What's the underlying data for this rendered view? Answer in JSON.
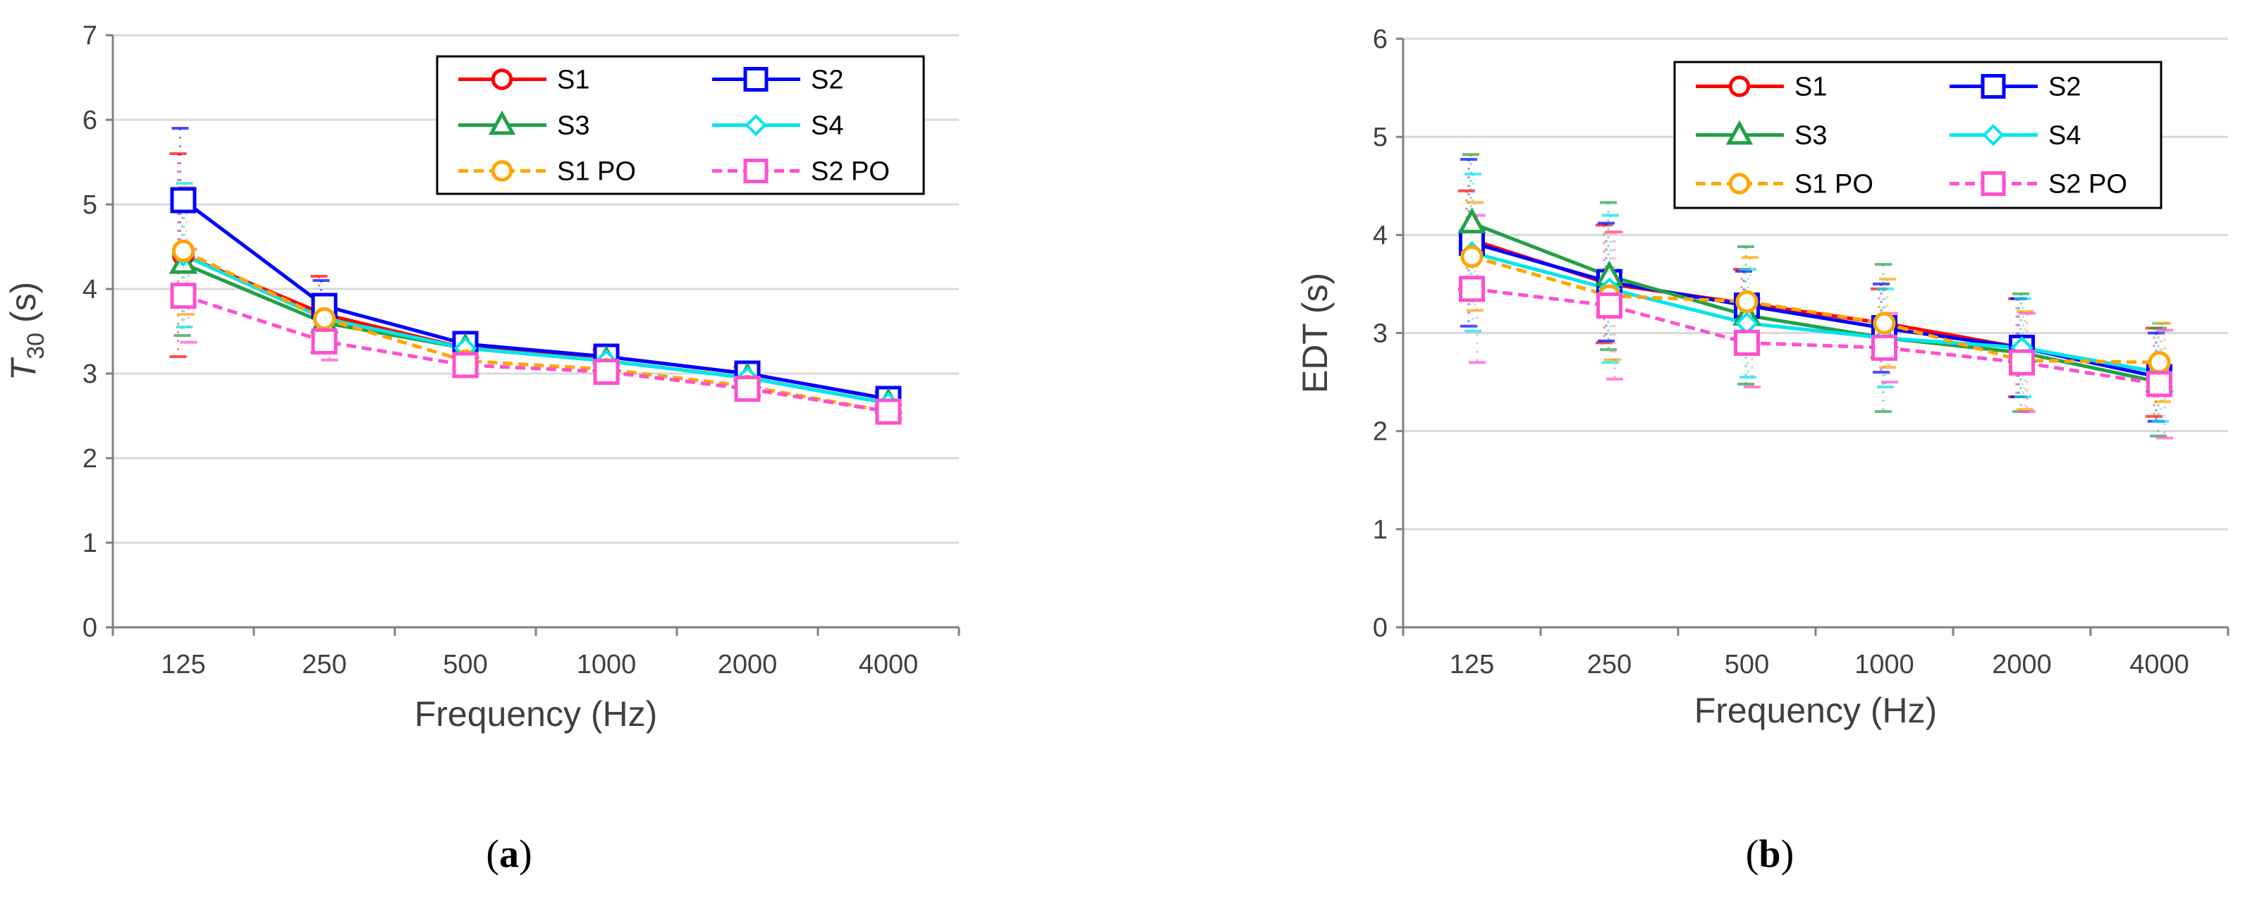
{
  "chart_data": [
    {
      "id": "a",
      "type": "line",
      "caption": "a",
      "xlabel": "Frequency (Hz)",
      "ylabel_main": "T",
      "ylabel_sub": "30",
      "ylabel_unit": " (s)",
      "ylim": [
        0,
        7
      ],
      "yticks": [
        "0",
        "1",
        "2",
        "3",
        "4",
        "5",
        "6",
        "7"
      ],
      "categories": [
        "125",
        "250",
        "500",
        "1000",
        "2000",
        "4000"
      ],
      "grid": true,
      "legend": "top-right",
      "series": [
        {
          "name": "S1",
          "values": [
            4.4,
            3.7,
            3.3,
            3.2,
            3.0,
            2.7
          ],
          "err": [
            1.2,
            0.45,
            0.1,
            0.08,
            0.08,
            0.08
          ]
        },
        {
          "name": "S2",
          "values": [
            5.05,
            3.8,
            3.35,
            3.2,
            3.0,
            2.7
          ],
          "err": [
            0.85,
            0.3,
            0.1,
            0.08,
            0.08,
            0.08
          ]
        },
        {
          "name": "S3",
          "values": [
            4.3,
            3.6,
            3.3,
            3.15,
            2.95,
            2.65
          ],
          "err": [
            0.85,
            0.2,
            0.1,
            0.08,
            0.08,
            0.08
          ]
        },
        {
          "name": "S4",
          "values": [
            4.4,
            3.65,
            3.3,
            3.15,
            2.95,
            2.65
          ],
          "err": [
            0.85,
            0.25,
            0.1,
            0.08,
            0.08,
            0.08
          ]
        },
        {
          "name": "S1 PO",
          "values": [
            4.45,
            3.65,
            3.15,
            3.05,
            2.85,
            2.55
          ],
          "err": [
            0.75,
            0.25,
            0.1,
            0.08,
            0.08,
            0.08
          ]
        },
        {
          "name": "S2 PO",
          "values": [
            3.92,
            3.38,
            3.1,
            3.02,
            2.82,
            2.55
          ],
          "err": [
            0.55,
            0.22,
            0.1,
            0.08,
            0.08,
            0.08
          ]
        }
      ]
    },
    {
      "id": "b",
      "type": "line",
      "caption": "b",
      "xlabel": "Frequency (Hz)",
      "ylabel_main": "EDT",
      "ylabel_sub": "",
      "ylabel_unit": " (s)",
      "ylim": [
        0,
        6
      ],
      "yticks": [
        "0",
        "1",
        "2",
        "3",
        "4",
        "5",
        "6"
      ],
      "categories": [
        "125",
        "250",
        "500",
        "1000",
        "2000",
        "4000"
      ],
      "grid": true,
      "legend": "top-right",
      "series": [
        {
          "name": "S1",
          "values": [
            3.95,
            3.5,
            3.3,
            3.1,
            2.85,
            2.6
          ],
          "err": [
            0.5,
            0.6,
            0.35,
            0.35,
            0.5,
            0.45
          ]
        },
        {
          "name": "S2",
          "values": [
            3.92,
            3.52,
            3.28,
            3.05,
            2.85,
            2.55
          ],
          "err": [
            0.85,
            0.6,
            0.35,
            0.45,
            0.5,
            0.45
          ]
        },
        {
          "name": "S3",
          "values": [
            4.12,
            3.58,
            3.18,
            2.95,
            2.8,
            2.5
          ],
          "err": [
            0.7,
            0.75,
            0.7,
            0.75,
            0.6,
            0.55
          ]
        },
        {
          "name": "S4",
          "values": [
            3.82,
            3.45,
            3.1,
            2.95,
            2.85,
            2.6
          ],
          "err": [
            0.8,
            0.75,
            0.55,
            0.5,
            0.5,
            0.5
          ]
        },
        {
          "name": "S1 PO",
          "values": [
            3.78,
            3.38,
            3.32,
            3.1,
            2.72,
            2.7
          ],
          "err": [
            0.55,
            0.65,
            0.45,
            0.45,
            0.5,
            0.4
          ]
        },
        {
          "name": "S2 PO",
          "values": [
            3.45,
            3.28,
            2.9,
            2.85,
            2.7,
            2.48
          ],
          "err": [
            0.75,
            0.75,
            0.45,
            0.35,
            0.5,
            0.55
          ]
        }
      ]
    }
  ],
  "style": {
    "colors": {
      "S1": "#ff0000",
      "S2": "#0000ff",
      "S3": "#22a046",
      "S4": "#00e5ee",
      "S1 PO": "#ffa500",
      "S2 PO": "#ff4fd0"
    },
    "markers": {
      "S1": "circle",
      "S2": "square",
      "S3": "triangle",
      "S4": "diamond",
      "S1 PO": "circle",
      "S2 PO": "square"
    },
    "dashed": {
      "S1": false,
      "S2": false,
      "S3": false,
      "S4": false,
      "S1 PO": true,
      "S2 PO": true
    },
    "grid_color": "#d9d9d9",
    "axis_color": "#808080",
    "text_color": "#404040"
  }
}
